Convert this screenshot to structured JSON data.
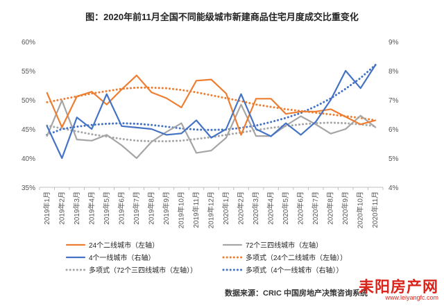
{
  "chart_data": {
    "type": "line",
    "title": "图：2020年前11月全国不同能级城市新建商品住宅月度成交比重变化",
    "categories": [
      "2019年1月",
      "2019年2月",
      "2019年3月",
      "2019年4月",
      "2019年5月",
      "2019年6月",
      "2019年7月",
      "2019年8月",
      "2019年9月",
      "2019年10月",
      "2019年11月",
      "2019年12月",
      "2020年1月",
      "2020年2月",
      "2020年3月",
      "2020年4月",
      "2020年5月",
      "2020年6月",
      "2020年7月",
      "2020年8月",
      "2020年9月",
      "2020年10月",
      "2020年11月"
    ],
    "y_left": {
      "ticks": [
        "35%",
        "40%",
        "45%",
        "50%",
        "55%",
        "60%"
      ],
      "range": [
        35,
        60
      ]
    },
    "y_right": {
      "ticks": [
        "4%",
        "5%",
        "6%",
        "7%",
        "8%",
        "9%"
      ],
      "range": [
        4,
        9
      ]
    },
    "grid": false,
    "legend_position": "bottom",
    "series": [
      {
        "name": "24个二线城市（左轴）",
        "axis": "left",
        "style": "solid",
        "color": "#ed7d31",
        "values": [
          51.2,
          45.3,
          50.6,
          51.4,
          49.2,
          51.8,
          54.2,
          51.3,
          50.3,
          48.7,
          53.3,
          53.5,
          51.1,
          44.0,
          50.2,
          50.2,
          47.6,
          48.0,
          48.0,
          48.4,
          47.1,
          45.8,
          46.5
        ]
      },
      {
        "name": "72个三四线城市（左轴）",
        "axis": "left",
        "style": "solid",
        "color": "#a5a5a5",
        "values": [
          43.8,
          49.9,
          43.2,
          43.0,
          44.0,
          42.2,
          40.0,
          42.8,
          44.5,
          46.0,
          40.9,
          41.3,
          43.5,
          49.2,
          43.8,
          43.8,
          45.6,
          47.2,
          45.8,
          44.2,
          45.0,
          47.3,
          45.3
        ]
      },
      {
        "name": "4个一线城市（右轴）",
        "axis": "right",
        "style": "solid",
        "color": "#4472c4",
        "values": [
          6.1,
          5.0,
          6.4,
          6.0,
          7.2,
          6.1,
          6.05,
          6.0,
          5.8,
          5.85,
          6.3,
          5.7,
          6.0,
          7.2,
          6.0,
          5.75,
          6.2,
          5.8,
          6.25,
          7.0,
          8.0,
          7.4,
          8.2
        ]
      },
      {
        "name": "多项式（24个二线城市（左轴））",
        "axis": "left",
        "style": "dotted",
        "color": "#ed7d31",
        "values": [
          49.6,
          50.1,
          50.6,
          51.1,
          51.5,
          51.9,
          52.1,
          52.1,
          52.0,
          51.7,
          51.3,
          50.8,
          50.3,
          49.8,
          49.2,
          48.8,
          48.4,
          48.1,
          47.8,
          47.5,
          47.2,
          46.9,
          46.5
        ]
      },
      {
        "name": "多项式（72个三四线城市（左轴））",
        "axis": "left",
        "style": "dotted",
        "color": "#a5a5a5",
        "values": [
          45.6,
          45.1,
          44.6,
          44.1,
          43.7,
          43.3,
          43.0,
          42.9,
          42.9,
          43.0,
          43.3,
          43.6,
          44.0,
          44.4,
          44.8,
          45.2,
          45.5,
          45.8,
          46.0,
          46.1,
          46.0,
          45.8,
          45.5
        ]
      },
      {
        "name": "多项式（4个一线城市（右轴））",
        "axis": "right",
        "style": "dotted",
        "color": "#4472c4",
        "values": [
          5.8,
          6.0,
          6.08,
          6.14,
          6.18,
          6.2,
          6.18,
          6.14,
          6.08,
          6.02,
          5.98,
          5.97,
          5.98,
          6.04,
          6.12,
          6.24,
          6.38,
          6.55,
          6.78,
          7.05,
          7.38,
          7.75,
          8.2
        ]
      }
    ]
  },
  "source": "数据来源：CRIC 中国房地产决策咨询系统",
  "watermark": {
    "text": "耒阳房产网",
    "url": "www.leiyangfc.com"
  }
}
